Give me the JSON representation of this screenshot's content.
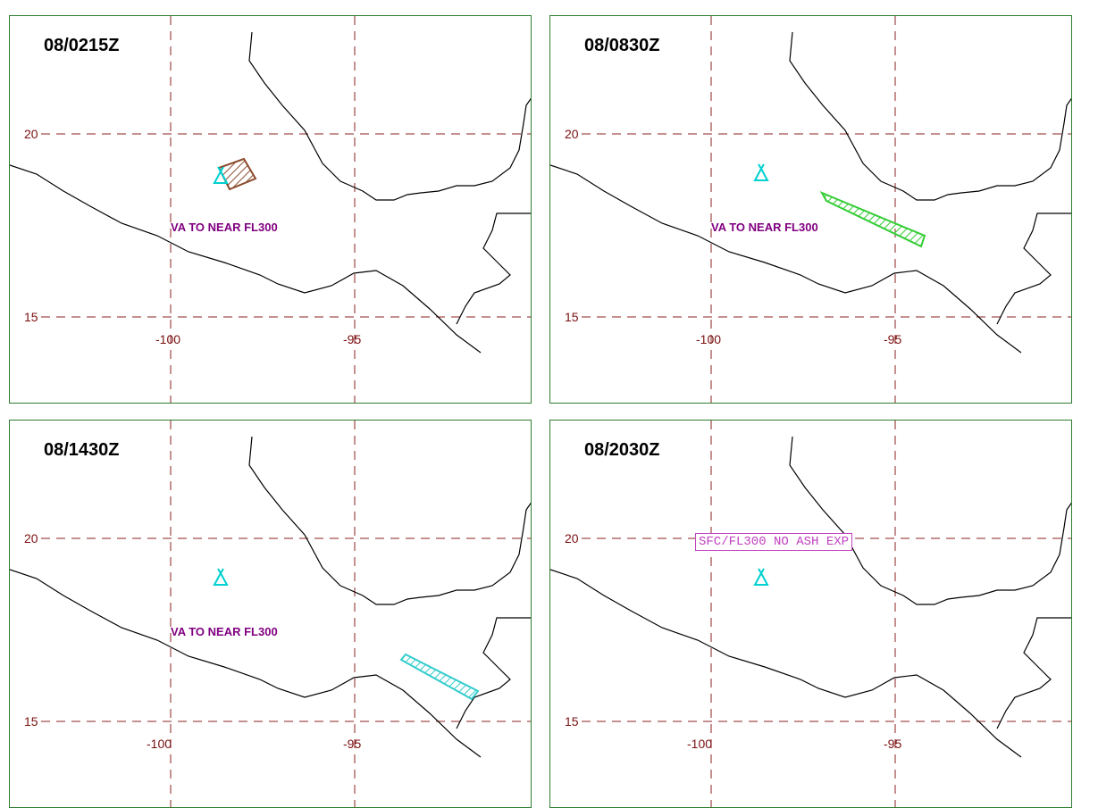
{
  "panels": [
    {
      "time": "08/0215Z",
      "note": "VA TO NEAR FL300",
      "ash_color": "#8b4a2b"
    },
    {
      "time": "08/0830Z",
      "note": "VA TO NEAR FL300",
      "ash_color": "#33cc33"
    },
    {
      "time": "08/1430Z",
      "note": "VA TO NEAR FL300",
      "ash_color": "#33cccc"
    },
    {
      "time": "08/2030Z",
      "note": "SFC/FL300 NO ASH EXP"
    }
  ],
  "grid": {
    "lat_labels": [
      "20",
      "15"
    ],
    "lon_labels": [
      "-100",
      "-95"
    ]
  },
  "colors": {
    "panel_border": "#2f7d2f",
    "grid": "#8b2020",
    "axis_text": "#7a1010",
    "coast": "#000000",
    "volcano": "#00d0d0",
    "note_text": "#800080",
    "boxed_note": "#c040c0"
  },
  "icons": {
    "volcano": "volcano-icon"
  }
}
